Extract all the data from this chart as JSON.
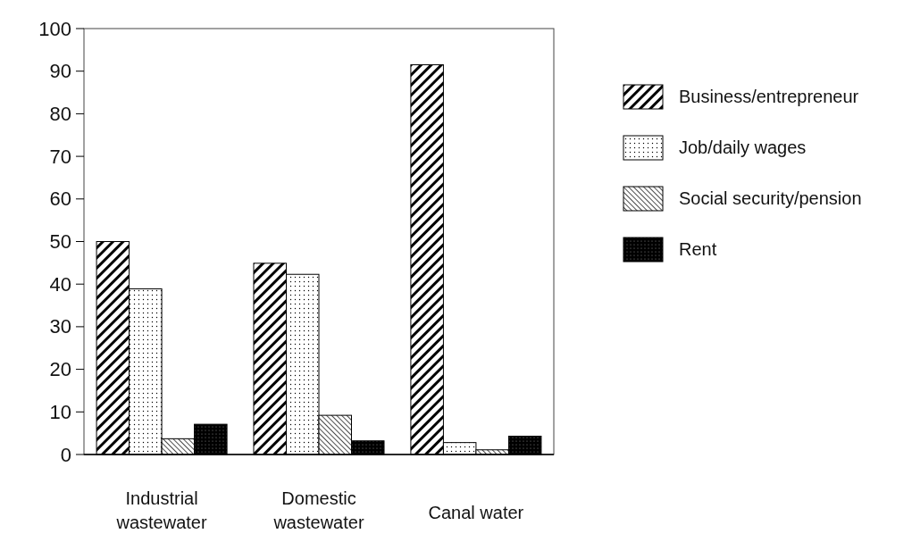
{
  "chart_data": {
    "type": "bar",
    "categories": [
      "Industrial wastewater",
      "Domestic wastewater",
      "Canal water"
    ],
    "series": [
      {
        "name": "Business/entrepreneur",
        "color": "#000000",
        "values": [
          50.0,
          44.9,
          91.5
        ]
      },
      {
        "name": "Job/daily wages",
        "color": "#000000",
        "values": [
          38.9,
          42.3,
          2.8
        ]
      },
      {
        "name": "Social security/pension",
        "color": "#000000",
        "values": [
          3.7,
          9.2,
          1.1
        ]
      },
      {
        "name": "Rent",
        "color": "#000000",
        "values": [
          7.1,
          3.2,
          4.3
        ]
      }
    ],
    "ylim": [
      0,
      100
    ],
    "yticks": [
      0,
      10,
      20,
      30,
      40,
      50,
      60,
      70,
      80,
      90,
      100
    ],
    "grid": false,
    "legend": "right"
  }
}
